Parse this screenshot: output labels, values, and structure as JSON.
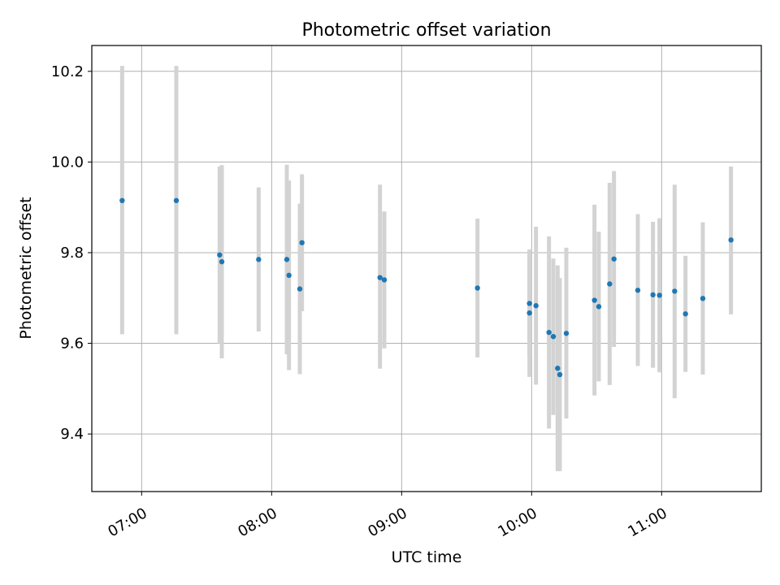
{
  "chart_data": {
    "type": "scatter",
    "title": "Photometric offset variation",
    "xlabel": "UTC time",
    "ylabel": "Photometric offset",
    "x_type": "time",
    "xlim": [
      "06:37",
      "11:46"
    ],
    "ylim": [
      9.273,
      10.257
    ],
    "x_ticks": [
      "07:00",
      "08:00",
      "09:00",
      "10:00",
      "11:00"
    ],
    "y_ticks": [
      9.4,
      9.6,
      9.8,
      10.0,
      10.2
    ],
    "y_tick_labels": [
      "9.4",
      "9.6",
      "9.8",
      "10.0",
      "10.2"
    ],
    "grid": true,
    "colors": {
      "point": "#1f77b4",
      "errorbar": "#d3d3d3",
      "grid": "#b0b0b0",
      "axes": "#000000"
    },
    "series": [
      {
        "points": [
          {
            "x": "06:51",
            "y": 9.915,
            "ylow": 9.62,
            "yhigh": 10.212
          },
          {
            "x": "07:16",
            "y": 9.915,
            "ylow": 9.62,
            "yhigh": 10.212
          },
          {
            "x": "07:36",
            "y": 9.795,
            "ylow": 9.6,
            "yhigh": 9.99
          },
          {
            "x": "07:37",
            "y": 9.78,
            "ylow": 9.567,
            "yhigh": 9.993
          },
          {
            "x": "07:54",
            "y": 9.785,
            "ylow": 9.626,
            "yhigh": 9.944
          },
          {
            "x": "08:07",
            "y": 9.785,
            "ylow": 9.576,
            "yhigh": 9.994
          },
          {
            "x": "08:08",
            "y": 9.75,
            "ylow": 9.541,
            "yhigh": 9.959
          },
          {
            "x": "08:13",
            "y": 9.72,
            "ylow": 9.532,
            "yhigh": 9.908
          },
          {
            "x": "08:14",
            "y": 9.822,
            "ylow": 9.671,
            "yhigh": 9.973
          },
          {
            "x": "08:50",
            "y": 9.745,
            "ylow": 9.544,
            "yhigh": 9.95
          },
          {
            "x": "08:52",
            "y": 9.74,
            "ylow": 9.589,
            "yhigh": 9.891
          },
          {
            "x": "09:35",
            "y": 9.722,
            "ylow": 9.569,
            "yhigh": 9.875
          },
          {
            "x": "09:59",
            "y": 9.667,
            "ylow": 9.526,
            "yhigh": 9.807
          },
          {
            "x": "09:59",
            "y": 9.688,
            "ylow": 9.573,
            "yhigh": 9.803
          },
          {
            "x": "10:02",
            "y": 9.683,
            "ylow": 9.509,
            "yhigh": 9.857
          },
          {
            "x": "10:08",
            "y": 9.624,
            "ylow": 9.412,
            "yhigh": 9.836
          },
          {
            "x": "10:10",
            "y": 9.615,
            "ylow": 9.442,
            "yhigh": 9.787
          },
          {
            "x": "10:12",
            "y": 9.545,
            "ylow": 9.318,
            "yhigh": 9.772
          },
          {
            "x": "10:13",
            "y": 9.531,
            "ylow": 9.318,
            "yhigh": 9.744
          },
          {
            "x": "10:16",
            "y": 9.622,
            "ylow": 9.434,
            "yhigh": 9.811
          },
          {
            "x": "10:29",
            "y": 9.695,
            "ylow": 9.485,
            "yhigh": 9.906
          },
          {
            "x": "10:31",
            "y": 9.681,
            "ylow": 9.516,
            "yhigh": 9.846
          },
          {
            "x": "10:36",
            "y": 9.731,
            "ylow": 9.508,
            "yhigh": 9.954
          },
          {
            "x": "10:38",
            "y": 9.786,
            "ylow": 9.592,
            "yhigh": 9.98
          },
          {
            "x": "10:49",
            "y": 9.717,
            "ylow": 9.55,
            "yhigh": 9.885
          },
          {
            "x": "10:56",
            "y": 9.707,
            "ylow": 9.546,
            "yhigh": 9.868
          },
          {
            "x": "10:59",
            "y": 9.706,
            "ylow": 9.536,
            "yhigh": 9.876
          },
          {
            "x": "11:06",
            "y": 9.715,
            "ylow": 9.479,
            "yhigh": 9.95
          },
          {
            "x": "11:11",
            "y": 9.665,
            "ylow": 9.537,
            "yhigh": 9.793
          },
          {
            "x": "11:19",
            "y": 9.699,
            "ylow": 9.531,
            "yhigh": 9.867
          },
          {
            "x": "11:32",
            "y": 9.828,
            "ylow": 9.664,
            "yhigh": 9.99
          }
        ]
      }
    ]
  }
}
